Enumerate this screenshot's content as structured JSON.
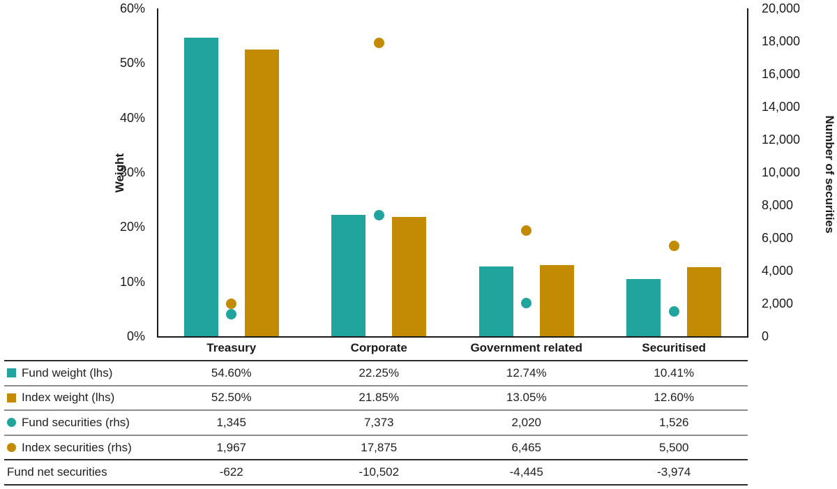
{
  "chart_data": {
    "type": "bar",
    "categories": [
      "Treasury",
      "Corporate",
      "Government related",
      "Securitised"
    ],
    "left_axis": {
      "label": "Weight",
      "min": 0,
      "max": 60,
      "step": 10,
      "format": "percent",
      "ticks": [
        {
          "value": 60,
          "label": "60%"
        },
        {
          "value": 50,
          "label": "50%"
        },
        {
          "value": 40,
          "label": "40%"
        },
        {
          "value": 30,
          "label": "30%"
        },
        {
          "value": 20,
          "label": "20%"
        },
        {
          "value": 10,
          "label": "10%"
        },
        {
          "value": 0,
          "label": "0%"
        }
      ]
    },
    "right_axis": {
      "label": "Number of securities",
      "min": 0,
      "max": 20000,
      "step": 2000,
      "ticks": [
        {
          "value": 20000,
          "label": "20,000"
        },
        {
          "value": 18000,
          "label": "18,000"
        },
        {
          "value": 16000,
          "label": "16,000"
        },
        {
          "value": 14000,
          "label": "14,000"
        },
        {
          "value": 12000,
          "label": "12,000"
        },
        {
          "value": 10000,
          "label": "10,000"
        },
        {
          "value": 8000,
          "label": "8,000"
        },
        {
          "value": 6000,
          "label": "6,000"
        },
        {
          "value": 4000,
          "label": "4,000"
        },
        {
          "value": 2000,
          "label": "2,000"
        },
        {
          "value": 0,
          "label": "0"
        }
      ]
    },
    "series": [
      {
        "name": "Fund weight (lhs)",
        "render": "bar",
        "axis": "left",
        "marker": "square",
        "color": "#20A49D",
        "values": [
          54.6,
          22.25,
          12.74,
          10.41
        ],
        "table_display": [
          "54.60%",
          "22.25%",
          "12.74%",
          "10.41%"
        ]
      },
      {
        "name": "Index weight (lhs)",
        "render": "bar",
        "axis": "left",
        "marker": "square",
        "color": "#C38B04",
        "values": [
          52.5,
          21.85,
          13.05,
          12.6
        ],
        "table_display": [
          "52.50%",
          "21.85%",
          "13.05%",
          "12.60%"
        ]
      },
      {
        "name": "Fund securities (rhs)",
        "render": "point",
        "axis": "right",
        "marker": "circle",
        "color": "#20A49D",
        "values": [
          1345,
          7373,
          2020,
          1526
        ],
        "table_display": [
          "1,345",
          "7,373",
          "2,020",
          "1,526"
        ]
      },
      {
        "name": "Index securities (rhs)",
        "render": "point",
        "axis": "right",
        "marker": "circle",
        "color": "#C38B04",
        "values": [
          1967,
          17875,
          6465,
          5500
        ],
        "table_display": [
          "1,967",
          "17,875",
          "6,465",
          "5,500"
        ]
      }
    ],
    "summary_row": {
      "label": "Fund net securities",
      "values": [
        -622,
        -10502,
        -4445,
        -3974
      ],
      "table_display": [
        "-622",
        "-10,502",
        "-4,445",
        "-3,974"
      ]
    },
    "legend_position": "table-left",
    "grid": false
  },
  "colors": {
    "teal": "#20A49D",
    "gold": "#C38B04",
    "axis_line": "#1a1a1a",
    "table_border_dark": "#2b2b2b",
    "table_border_gray": "#8c8c8c",
    "text": "#1f1f1f"
  }
}
